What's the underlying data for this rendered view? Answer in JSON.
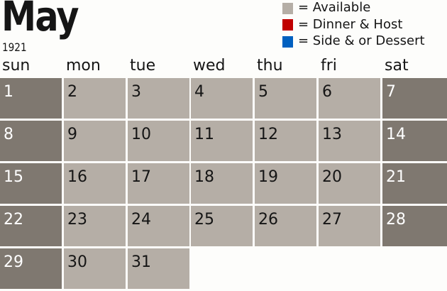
{
  "header": {
    "month": "May",
    "year": "1921"
  },
  "legend": [
    {
      "label": "= Available",
      "color": "#b5aea6"
    },
    {
      "label": "= Dinner & Host",
      "color": "#c00000"
    },
    {
      "label": "= Side & or Dessert",
      "color": "#0060c0"
    }
  ],
  "weekdays": [
    "sun",
    "mon",
    "tue",
    "wed",
    "thu",
    "fri",
    "sat"
  ],
  "colors": {
    "weekday_cell": "#b5aea6",
    "weekend_cell": "#7f7870"
  },
  "weeks": [
    [
      "1",
      "2",
      "3",
      "4",
      "5",
      "6",
      "7"
    ],
    [
      "8",
      "9",
      "10",
      "11",
      "12",
      "13",
      "14"
    ],
    [
      "15",
      "16",
      "17",
      "18",
      "19",
      "20",
      "21"
    ],
    [
      "22",
      "23",
      "24",
      "25",
      "26",
      "27",
      "28"
    ],
    [
      "29",
      "30",
      "31",
      null,
      null,
      null,
      null
    ]
  ]
}
